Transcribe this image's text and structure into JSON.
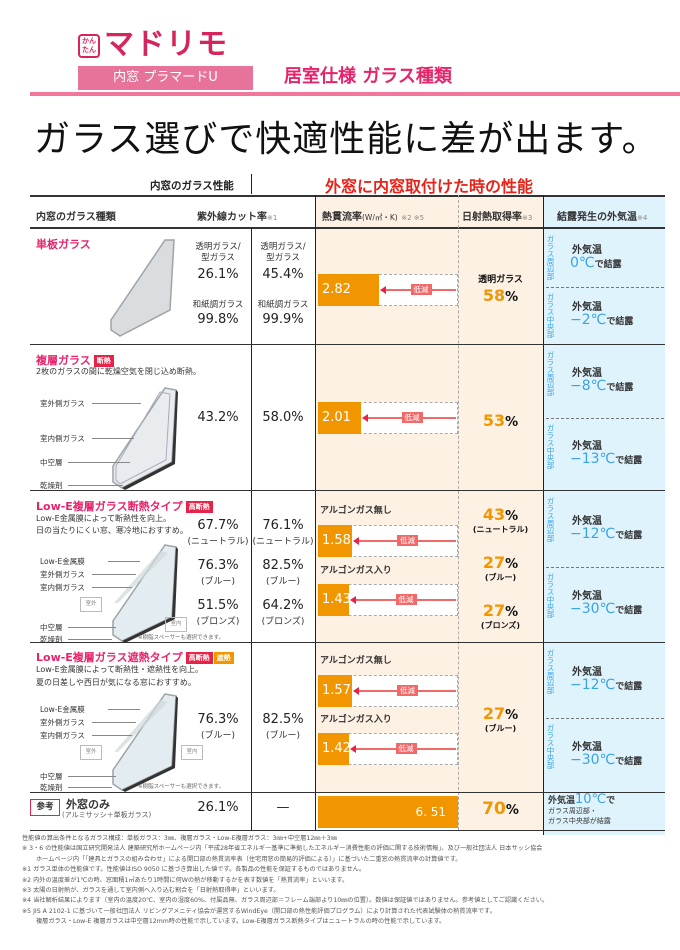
{
  "header": {
    "logo_badge": "かんたん",
    "logo_title": "マドリモ",
    "logo_subtitle": "内窓 プラマードU",
    "section_title": "居室仕様 ガラス種類",
    "headline": "ガラス選びで快適性能に差が出ます。"
  },
  "table": {
    "inner_perf_label": "内窓のガラス性能",
    "outer_perf_label": "外窓に内窓取付けた時の性能",
    "columns": {
      "glass_type": "内窓のガラス種類",
      "uv_cut": "紫外線カット率",
      "uv_cut_note": "※1",
      "heat_transmission": "熱貫流率",
      "heat_transmission_unit": "(W/㎡・K)",
      "heat_transmission_note": "※2 ※5",
      "solar_gain": "日射熱取得率",
      "solar_gain_note": "※3",
      "condensation": "結露発生の外気温",
      "condensation_note": "※4"
    },
    "reduce_label": "低減",
    "edge_label": "ガラス周辺部",
    "center_label": "ガラス中央部",
    "outside_temp_label": "外気温",
    "condense_suffix": "で結露",
    "rows": [
      {
        "title": "単板ガラス",
        "uv": [
          {
            "label": "透明ガラス/型ガラス",
            "label1": "透明ガラス/",
            "label2": "型ガラス",
            "inner": "26.1%",
            "outer": "45.4%"
          },
          {
            "label": "和紙調ガラス",
            "inner": "99.8%",
            "outer": "99.9%"
          }
        ],
        "heat": [
          {
            "value": "2.82",
            "ratio": 0.433
          }
        ],
        "solar": [
          {
            "label": "透明ガラス",
            "value": "58",
            "unit": "%"
          }
        ],
        "cond_edge": "0℃",
        "cond_center": "−2℃"
      },
      {
        "title": "複層ガラス",
        "tags": [
          "断熱"
        ],
        "description": "2枚のガラスの間に乾燥空気を閉じ込め断熱。",
        "parts": [
          "室外側ガラス",
          "室内側ガラス",
          "中空層",
          "乾燥剤"
        ],
        "uv_inner": "43.2%",
        "uv_outer": "58.0%",
        "heat": [
          {
            "value": "2.01",
            "ratio": 0.309
          }
        ],
        "solar": [
          {
            "value": "53",
            "unit": "%"
          }
        ],
        "cond_edge": "−8℃",
        "cond_center": "−13℃"
      },
      {
        "title": "Low-E複層ガラス断熱タイプ",
        "tags": [
          "高断熱"
        ],
        "description": [
          "Low-E金属膜によって断熱性を向上。",
          "日の当たりにくい窓、寒冷地におすすめ。"
        ],
        "parts": [
          "Low-E金属膜",
          "室外側ガラス",
          "室内側ガラス",
          "中空層",
          "乾燥剤"
        ],
        "room_outside": "室外",
        "room_inside": "室内",
        "spacer_note": "※樹脂スペーサーも選択できます。",
        "uv": [
          {
            "inner": "67.7%",
            "outer": "76.1%",
            "variant": "(ニュートラル)"
          },
          {
            "inner": "76.3%",
            "outer": "82.5%",
            "variant": "(ブルー)"
          },
          {
            "inner": "51.5%",
            "outer": "64.2%",
            "variant": "(ブロンズ)"
          }
        ],
        "heat": [
          {
            "label": "アルゴンガス無し",
            "value": "1.58",
            "ratio": 0.243
          },
          {
            "label": "アルゴンガス入り",
            "value": "1.43",
            "ratio": 0.22
          }
        ],
        "solar": [
          {
            "value": "43",
            "unit": "%",
            "variant": "(ニュートラル)"
          },
          {
            "value": "27",
            "unit": "%",
            "variant": "(ブルー)"
          },
          {
            "value": "27",
            "unit": "%",
            "variant": "(ブロンズ)"
          }
        ],
        "cond_edge": "−12℃",
        "cond_center": "−30℃"
      },
      {
        "title": "Low-E複層ガラス遮熱タイプ",
        "tags": [
          "高断熱",
          "遮熱"
        ],
        "description": [
          "Low-E金属膜によって断熱性・遮熱性を向上。",
          "夏の日差しや西日が気になる窓におすすめ。"
        ],
        "parts": [
          "Low-E金属膜",
          "室外側ガラス",
          "室内側ガラス",
          "中空層",
          "乾燥剤"
        ],
        "room_outside": "室外",
        "room_inside": "室内",
        "spacer_note": "※樹脂スペーサーも選択できます。",
        "uv": [
          {
            "inner": "76.3%",
            "outer": "82.5%",
            "variant": "(ブルー)"
          }
        ],
        "heat": [
          {
            "label": "アルゴンガス無し",
            "value": "1.57",
            "ratio": 0.241
          },
          {
            "label": "アルゴンガス入り",
            "value": "1.42",
            "ratio": 0.218
          }
        ],
        "solar": [
          {
            "value": "27",
            "unit": "%",
            "variant": "(ブルー)"
          }
        ],
        "cond_edge": "−12℃",
        "cond_center": "−30℃"
      }
    ],
    "reference": {
      "tag": "参考",
      "title": "外窓のみ",
      "subtitle": "(アルミサッシ＋単板ガラス)",
      "uv_inner": "26.1%",
      "uv_outer": "—",
      "heat_value": "6. 51",
      "heat_ratio": 1.0,
      "solar_value": "70",
      "solar_unit": "%",
      "cond_line1": "外気温",
      "cond_temp": "10℃",
      "cond_line1_suffix": "で",
      "cond_line2": "ガラス周辺部・",
      "cond_line3": "ガラス中央部が結露"
    }
  },
  "notes": [
    "性能値の算出条件となるガラス構成：単板ガラス：3㎜、複層ガラス・Low-E複層ガラス：3㎜+中空層12㎜＋3㎜",
    "※ 3・6 の性能値は国立研究開発法人 建築研究所ホームページ内「平成28年省エネルギー基準に準拠したエネルギー消費性能の評価に関する技術情報」、及び一般社団法人 日本サッシ協会",
    "ホームページ内「「建具とガラスの組み合わせ」による開口部の熱貫流率表（住宅用窓の簡易的評価による）」に基づいた二重窓の熱貫流率の計算値です。",
    "※1 ガラス単体の性能値です。性能値はISO 9050 に基づき算出した値です。各製品の性能を保証するものではありません。",
    "※2 内外の温度差が1℃の時、窓面積1㎡あたり1時間に何Wの熱が移動するかを表す数値を「熱貫流率」といいます。",
    "※3 太陽の日射熱が、ガラスを通して室内側へ入り込む割合を「日射熱取得率」といいます。",
    "※4 当社解析結果によります（室内の温度20℃、室内の湿度60%、付属品無、ガラス周辺部＝フレーム端部より10㎜の位置）。数値は保証値ではありません。参考値としてご認識ください。",
    "※5 JIS A 2102-1 に基づいて一般社団法人 リビングアメニティ協会が運営するWindEye（開口部の熱性能評価プログラム）により計算された代表試験体の熱貫流率です。",
    "複層ガラス・Low-E 複層ガラスは中空層12mm時の性能で示しています。Low-E複層ガラス断熱タイプはニュートラルの時の性能で示しています。"
  ]
}
